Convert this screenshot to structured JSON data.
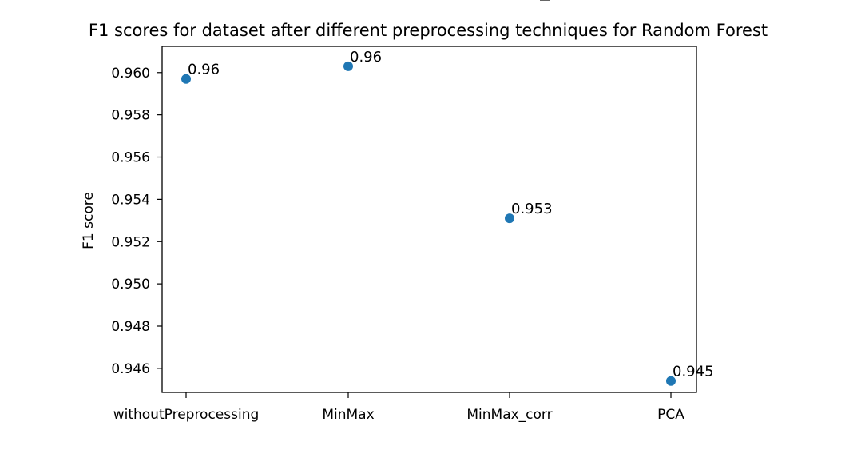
{
  "chart_data": {
    "type": "scatter",
    "title": "F1 scores for dataset after different preprocessing techniques for Random Forest",
    "xlabel": "",
    "ylabel": "F1 score",
    "categories": [
      "withoutPreprocessing",
      "MinMax",
      "MinMax_corr",
      "PCA"
    ],
    "values": [
      0.9597,
      0.9603,
      0.9531,
      0.9454
    ],
    "point_labels": [
      "0.96",
      "0.96",
      "0.953",
      "0.945"
    ],
    "yticks": [
      0.946,
      0.948,
      0.95,
      0.952,
      0.954,
      0.956,
      0.958,
      0.96
    ],
    "ytick_labels": [
      "0.946",
      "0.948",
      "0.950",
      "0.952",
      "0.954",
      "0.956",
      "0.958",
      "0.960"
    ],
    "ylim": [
      0.94486,
      0.96124
    ],
    "grid": false,
    "legend": "none",
    "marker_color": "#1f77b4"
  }
}
